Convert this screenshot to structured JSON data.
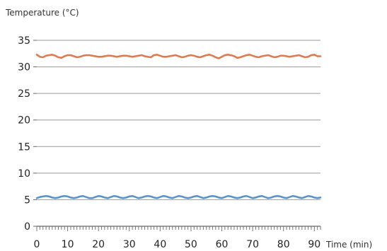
{
  "chart_data": {
    "type": "line",
    "ylabel": "Temperature (°C)",
    "xlabel": "Time (min)",
    "xlim": [
      0,
      92
    ],
    "ylim": [
      0,
      35
    ],
    "x_ticks": [
      "0",
      "10",
      "20",
      "30",
      "40",
      "50",
      "60",
      "70",
      "80",
      "90"
    ],
    "y_ticks": [
      "0",
      "5",
      "10",
      "15",
      "20",
      "25",
      "30",
      "35"
    ],
    "grid": "horizontal",
    "series": [
      {
        "color": "#e07a4f",
        "x": [
          0,
          1,
          2,
          3,
          4,
          5,
          6,
          7,
          8,
          9,
          10,
          11,
          12,
          13,
          14,
          15,
          16,
          17,
          18,
          19,
          20,
          21,
          22,
          23,
          24,
          25,
          26,
          27,
          28,
          29,
          30,
          31,
          32,
          33,
          34,
          35,
          36,
          37,
          38,
          39,
          40,
          41,
          42,
          43,
          44,
          45,
          46,
          47,
          48,
          49,
          50,
          51,
          52,
          53,
          54,
          55,
          56,
          57,
          58,
          59,
          60,
          61,
          62,
          63,
          64,
          65,
          66,
          67,
          68,
          69,
          70,
          71,
          72,
          73,
          74,
          75,
          76,
          77,
          78,
          79,
          80,
          81,
          82,
          83,
          84,
          85,
          86,
          87,
          88,
          89,
          90,
          91,
          92
        ],
        "values": [
          32.3,
          31.9,
          31.8,
          32.1,
          32.2,
          32.3,
          32.1,
          31.8,
          31.7,
          32.0,
          32.2,
          32.2,
          32.0,
          31.8,
          31.9,
          32.1,
          32.2,
          32.2,
          32.1,
          32.0,
          31.9,
          31.9,
          32.0,
          32.1,
          32.1,
          32.0,
          31.9,
          32.0,
          32.1,
          32.1,
          32.0,
          31.9,
          32.0,
          32.1,
          32.2,
          32.0,
          31.9,
          31.8,
          32.2,
          32.3,
          32.1,
          31.9,
          31.9,
          32.0,
          32.1,
          32.2,
          32.0,
          31.8,
          31.9,
          32.1,
          32.2,
          32.1,
          31.9,
          31.8,
          32.0,
          32.2,
          32.3,
          32.1,
          31.8,
          31.6,
          31.9,
          32.2,
          32.3,
          32.2,
          32.0,
          31.7,
          31.8,
          32.0,
          32.2,
          32.3,
          32.1,
          31.9,
          31.8,
          32.0,
          32.1,
          32.2,
          32.0,
          31.8,
          31.9,
          32.1,
          32.1,
          32.0,
          31.9,
          32.0,
          32.1,
          32.2,
          32.0,
          31.8,
          31.9,
          32.2,
          32.3,
          32.0,
          32.0
        ]
      },
      {
        "color": "#5b92c9",
        "x": [
          0,
          1,
          2,
          3,
          4,
          5,
          6,
          7,
          8,
          9,
          10,
          11,
          12,
          13,
          14,
          15,
          16,
          17,
          18,
          19,
          20,
          21,
          22,
          23,
          24,
          25,
          26,
          27,
          28,
          29,
          30,
          31,
          32,
          33,
          34,
          35,
          36,
          37,
          38,
          39,
          40,
          41,
          42,
          43,
          44,
          45,
          46,
          47,
          48,
          49,
          50,
          51,
          52,
          53,
          54,
          55,
          56,
          57,
          58,
          59,
          60,
          61,
          62,
          63,
          64,
          65,
          66,
          67,
          68,
          69,
          70,
          71,
          72,
          73,
          74,
          75,
          76,
          77,
          78,
          79,
          80,
          81,
          82,
          83,
          84,
          85,
          86,
          87,
          88,
          89,
          90,
          91,
          92
        ],
        "values": [
          5.3,
          5.5,
          5.6,
          5.7,
          5.6,
          5.4,
          5.3,
          5.4,
          5.6,
          5.7,
          5.6,
          5.4,
          5.3,
          5.4,
          5.6,
          5.7,
          5.5,
          5.3,
          5.3,
          5.5,
          5.7,
          5.6,
          5.4,
          5.3,
          5.5,
          5.7,
          5.6,
          5.4,
          5.3,
          5.4,
          5.6,
          5.7,
          5.5,
          5.3,
          5.4,
          5.6,
          5.7,
          5.6,
          5.4,
          5.3,
          5.5,
          5.7,
          5.6,
          5.4,
          5.3,
          5.5,
          5.7,
          5.6,
          5.4,
          5.3,
          5.4,
          5.6,
          5.7,
          5.5,
          5.3,
          5.4,
          5.6,
          5.7,
          5.6,
          5.4,
          5.3,
          5.5,
          5.7,
          5.6,
          5.4,
          5.3,
          5.4,
          5.6,
          5.7,
          5.5,
          5.3,
          5.4,
          5.6,
          5.7,
          5.5,
          5.3,
          5.4,
          5.6,
          5.7,
          5.6,
          5.4,
          5.3,
          5.5,
          5.7,
          5.6,
          5.4,
          5.3,
          5.5,
          5.7,
          5.6,
          5.4,
          5.3,
          5.4
        ]
      }
    ]
  }
}
